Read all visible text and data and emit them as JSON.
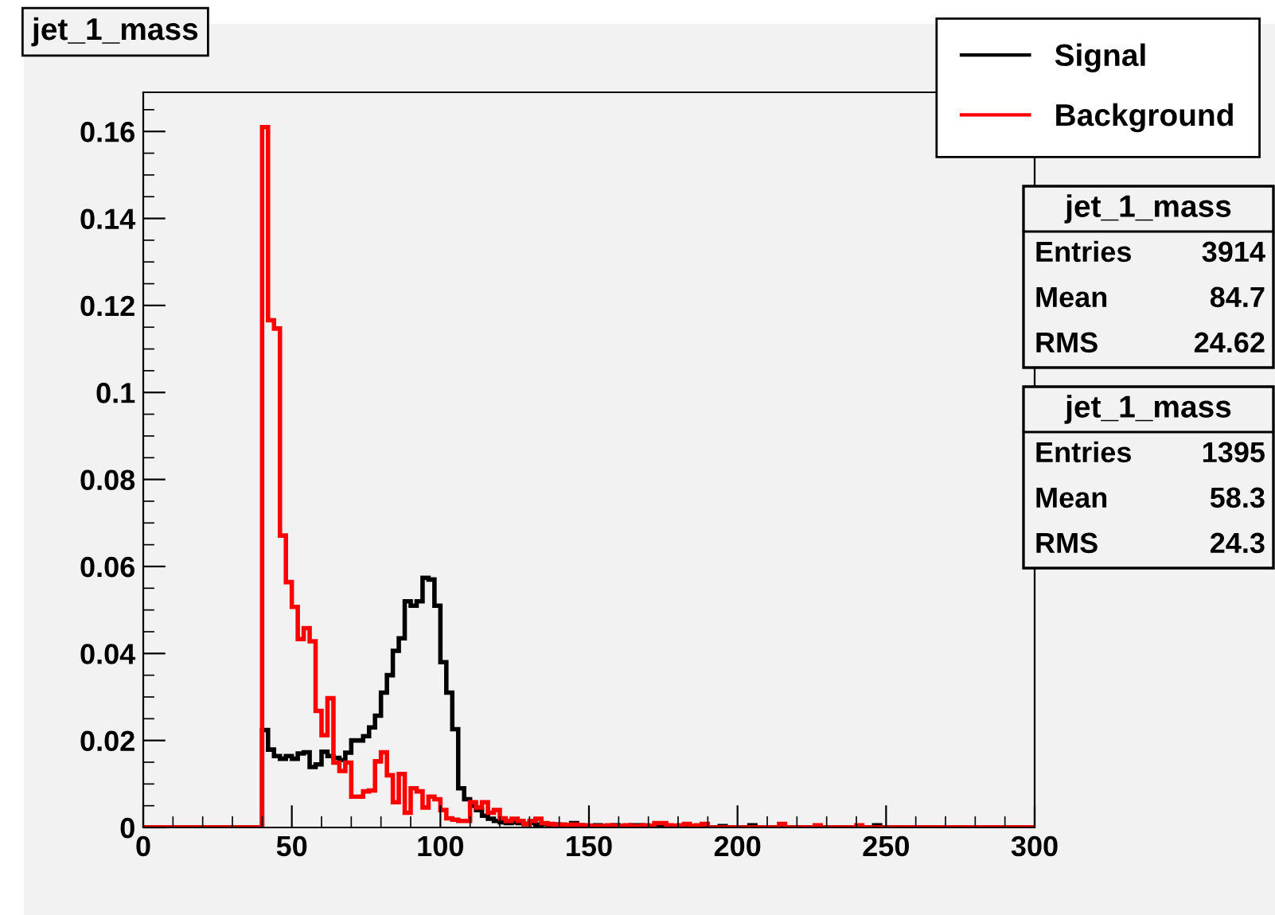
{
  "chart_data": {
    "type": "histogram",
    "title": "jet_1_mass",
    "bins": [
      0,
      2,
      4,
      6,
      8,
      10,
      12,
      14,
      16,
      18,
      20,
      22,
      24,
      26,
      28,
      30,
      32,
      34,
      36,
      38,
      40,
      42,
      44,
      46,
      48,
      50,
      52,
      54,
      56,
      58,
      60,
      62,
      64,
      66,
      68,
      70,
      72,
      74,
      76,
      78,
      80,
      82,
      84,
      86,
      88,
      90,
      92,
      94,
      96,
      98,
      100,
      102,
      104,
      106,
      108,
      110,
      112,
      114,
      116,
      118,
      120,
      122,
      124,
      126,
      128,
      130,
      132,
      134,
      136,
      138,
      140,
      142,
      144,
      146,
      148,
      150,
      152,
      154,
      156,
      158,
      160,
      162,
      164,
      166,
      168,
      170,
      172,
      174,
      176,
      178,
      180,
      182,
      184,
      186,
      188,
      190,
      192,
      194,
      196,
      198,
      200,
      202,
      204,
      206,
      208,
      210,
      212,
      214,
      216,
      218,
      220,
      222,
      224,
      226,
      228,
      230,
      232,
      234,
      236,
      238,
      240,
      242,
      244,
      246,
      248,
      250,
      252,
      254,
      256,
      258,
      260,
      262,
      264,
      266,
      268,
      270,
      272,
      274,
      276,
      278,
      280,
      282,
      284,
      286,
      288,
      290,
      292,
      294,
      296,
      298,
      300
    ],
    "series": [
      {
        "name": "Signal",
        "color": "#000000",
        "values": [
          0,
          0,
          0,
          0,
          0,
          0,
          0,
          0,
          0,
          0,
          0,
          0,
          0,
          0,
          0,
          0,
          0,
          0,
          0,
          0,
          0.0224,
          0.0179,
          0.0164,
          0.0158,
          0.0164,
          0.0158,
          0.017,
          0.0173,
          0.0139,
          0.0145,
          0.0174,
          0.0164,
          0.016,
          0.0155,
          0.0172,
          0.02,
          0.02,
          0.021,
          0.023,
          0.0257,
          0.031,
          0.035,
          0.0406,
          0.0435,
          0.052,
          0.051,
          0.052,
          0.0574,
          0.057,
          0.051,
          0.038,
          0.031,
          0.0226,
          0.009,
          0.0065,
          0.005,
          0.004,
          0.0027,
          0.002,
          0.0015,
          0.0012,
          0.001,
          0.0012,
          0.001,
          0.0008,
          0.001,
          0.0007,
          0.0008,
          0.0005,
          0.0007,
          0.0005,
          0.0005,
          0.001,
          0.0005,
          0.0003,
          0.0003,
          0.0005,
          0.0003,
          0.0003,
          0.0005,
          0.0003,
          0.0003,
          0.0005,
          0.0005,
          0.0003,
          0.0003,
          0.0003,
          0.0005,
          0,
          0.0003,
          0.0003,
          0,
          0.0003,
          0,
          0,
          0,
          0,
          0.0003,
          0,
          0,
          0,
          0,
          0.0005,
          0,
          0,
          0,
          0,
          0,
          0,
          0,
          0,
          0,
          0,
          0,
          0,
          0,
          0,
          0,
          0,
          0,
          0,
          0,
          0,
          0.0005,
          0,
          0,
          0,
          0,
          0,
          0,
          0,
          0,
          0,
          0,
          0,
          0,
          0,
          0,
          0,
          0,
          0,
          0,
          0,
          0,
          0,
          0,
          0,
          0,
          0,
          0
        ]
      },
      {
        "name": "Background",
        "color": "#ff0000",
        "values": [
          0,
          0,
          0,
          0,
          0,
          0,
          0,
          0,
          0,
          0,
          0,
          0,
          0,
          0,
          0,
          0,
          0,
          0,
          0,
          0,
          0.161,
          0.1166,
          0.1147,
          0.0671,
          0.0564,
          0.0507,
          0.0433,
          0.0458,
          0.0428,
          0.0268,
          0.0212,
          0.0297,
          0.0149,
          0.013,
          0.0149,
          0.0071,
          0.0071,
          0.0083,
          0.0085,
          0.0152,
          0.0173,
          0.012,
          0.0058,
          0.0123,
          0.0034,
          0.009,
          0.0083,
          0.0046,
          0.0071,
          0.0065,
          0.004,
          0.0021,
          0.0018,
          0.0015,
          0.0015,
          0.0058,
          0.0046,
          0.0058,
          0.0034,
          0.004,
          0.0021,
          0.0015,
          0.002,
          0.0015,
          0.0008,
          0.0015,
          0.002,
          0.001,
          0.0008,
          0.0007,
          0.0007,
          0.0005,
          0.0007,
          0.0005,
          0.0005,
          0.0003,
          0.0003,
          0.0003,
          0.0005,
          0.0003,
          0.0003,
          0.0005,
          0.0003,
          0.0003,
          0.0005,
          0.0003,
          0.001,
          0.001,
          0.0005,
          0.0003,
          0.0005,
          0.0008,
          0.0003,
          0.0005,
          0.0008,
          0,
          0,
          0,
          0,
          0,
          0,
          0,
          0,
          0,
          0,
          0,
          0,
          0.0008,
          0,
          0,
          0,
          0,
          0,
          0.0005,
          0,
          0,
          0,
          0,
          0,
          0,
          0.0005,
          0,
          0,
          0,
          0,
          0,
          0,
          0,
          0,
          0,
          0,
          0,
          0,
          0,
          0,
          0,
          0,
          0,
          0,
          0,
          0,
          0,
          0,
          0,
          0,
          0,
          0,
          0,
          0,
          0
        ]
      }
    ],
    "xlim": [
      0,
      300
    ],
    "xticks": [
      0,
      50,
      100,
      150,
      200,
      250,
      300
    ],
    "ylim": [
      0,
      0.169
    ],
    "yticks": [
      0,
      0.02,
      0.04,
      0.06,
      0.08,
      0.1,
      0.12,
      0.14,
      0.16
    ],
    "legend": "top right",
    "grid": false,
    "annotations": [
      "jet_1_mass",
      "Entries 3914",
      "Mean 84.7",
      "RMS 24.62",
      "jet_1_mass",
      "Entries 1395",
      "Mean 58.3",
      "RMS 24.3"
    ]
  }
}
